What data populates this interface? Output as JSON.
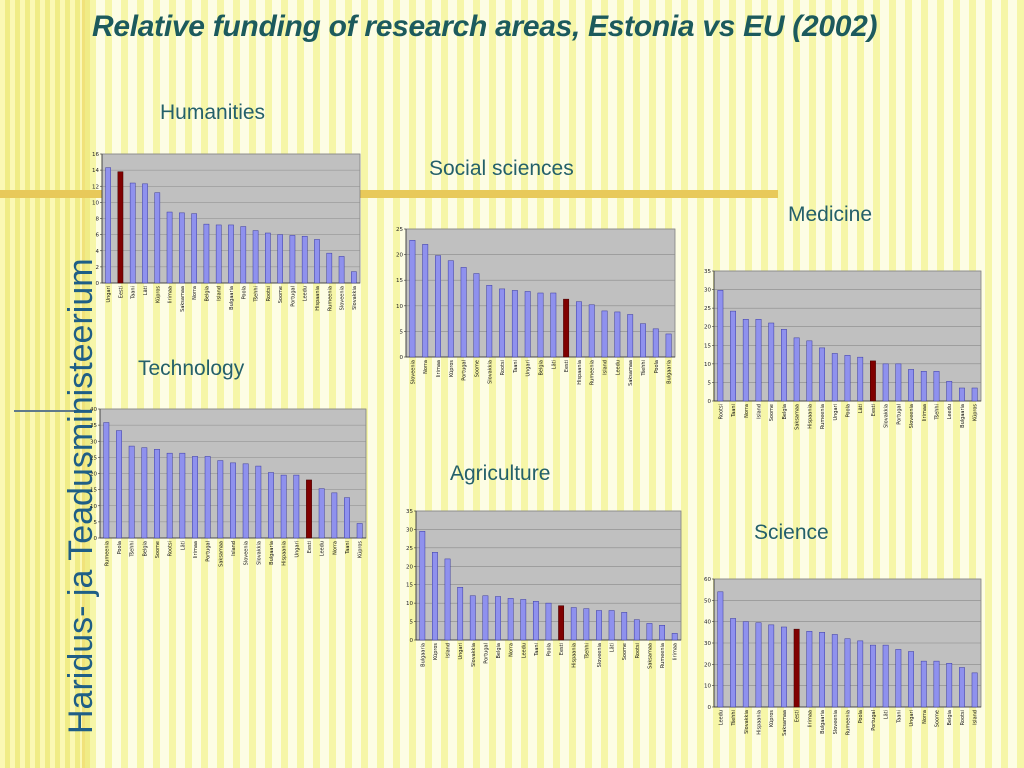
{
  "title": "Relative funding of research areas, Estonia vs EU (2002)",
  "brand": "Haridus- ja Teadusministeerium",
  "colors": {
    "bar": "#8f91ee",
    "highlight": "#800000",
    "plot_bg": "#c0c0c0"
  },
  "charts": {
    "humanities": {
      "label": "Humanities"
    },
    "social": {
      "label": "Social sciences"
    },
    "medicine": {
      "label": "Medicine"
    },
    "technology": {
      "label": "Technology"
    },
    "agriculture": {
      "label": "Agriculture"
    },
    "science": {
      "label": "Science"
    }
  },
  "chart_data": [
    {
      "id": "humanities",
      "type": "bar",
      "title": "Humanities",
      "highlight": "Eesti",
      "ylim": [
        0,
        16
      ],
      "yticks": [
        0,
        2,
        4,
        6,
        8,
        10,
        12,
        14,
        16
      ],
      "grid": true,
      "categories": [
        "Ungari",
        "Eesti",
        "Taani",
        "Läti",
        "Küpros",
        "Iirimaa",
        "Saksamaa",
        "Norra",
        "Belgia",
        "Island",
        "Bulgaaria",
        "Poola",
        "Tšehhi",
        "Rootsi",
        "Soome",
        "Portugal",
        "Leedu",
        "Hispaania",
        "Rumeenia",
        "Sloveenia",
        "Slovakkia"
      ],
      "values": [
        14.3,
        13.8,
        12.4,
        12.3,
        11.2,
        8.8,
        8.7,
        8.6,
        7.3,
        7.2,
        7.2,
        7.0,
        6.5,
        6.2,
        6.0,
        5.9,
        5.8,
        5.4,
        3.7,
        3.3,
        1.4
      ]
    },
    {
      "id": "social",
      "type": "bar",
      "title": "Social sciences",
      "highlight": "Eesti",
      "ylim": [
        0,
        25
      ],
      "yticks": [
        0,
        5,
        10,
        15,
        20,
        25
      ],
      "grid": true,
      "categories": [
        "Sloveenia",
        "Norra",
        "Iirimaa",
        "Küpros",
        "Portugal",
        "Soome",
        "Slovakkia",
        "Rootsi",
        "Taani",
        "Ungari",
        "Belgia",
        "Läti",
        "Eesti",
        "Hispaania",
        "Rumeenia",
        "Island",
        "Leedu",
        "Saksamaa",
        "Tšehhi",
        "Poola",
        "Bulgaaria"
      ],
      "values": [
        22.8,
        22.0,
        19.8,
        18.8,
        17.5,
        16.3,
        14.0,
        13.3,
        13.0,
        12.8,
        12.5,
        12.5,
        11.3,
        10.8,
        10.2,
        9.0,
        8.8,
        8.3,
        6.5,
        5.5,
        4.5
      ]
    },
    {
      "id": "medicine",
      "type": "bar",
      "title": "Medicine",
      "highlight": "Eesti",
      "ylim": [
        0,
        35
      ],
      "yticks": [
        0,
        5,
        10,
        15,
        20,
        25,
        30,
        35
      ],
      "grid": true,
      "categories": [
        "Rootsi",
        "Taani",
        "Norra",
        "Island",
        "Soome",
        "Belgia",
        "Saksamaa",
        "Hispaania",
        "Rumeenia",
        "Ungari",
        "Poola",
        "Läti",
        "Eesti",
        "Slovakkia",
        "Portugal",
        "Sloveenia",
        "Iirimaa",
        "Tšehhi",
        "Leedu",
        "Bulgaaria",
        "Küpros"
      ],
      "values": [
        29.8,
        24.2,
        22.0,
        22.0,
        21.0,
        19.3,
        17.0,
        16.2,
        14.3,
        12.8,
        12.3,
        11.8,
        10.8,
        10.0,
        10.0,
        8.5,
        8.0,
        8.0,
        5.3,
        3.5,
        3.5
      ]
    },
    {
      "id": "technology",
      "type": "bar",
      "title": "Technology",
      "highlight": "Eesti",
      "ylim": [
        0,
        40
      ],
      "yticks": [
        0,
        5,
        10,
        15,
        20,
        25,
        30,
        35,
        40
      ],
      "grid": true,
      "categories": [
        "Rumeenia",
        "Poola",
        "Tšehhi",
        "Belgia",
        "Soome",
        "Rootsi",
        "Läti",
        "Iirimaa",
        "Portugal",
        "Saksamaa",
        "Island",
        "Sloveenia",
        "Slovakkia",
        "Bulgaaria",
        "Hispaania",
        "Ungari",
        "Eesti",
        "Leedu",
        "Norra",
        "Taani",
        "Küpros"
      ],
      "values": [
        35.8,
        33.3,
        28.5,
        28.0,
        27.5,
        26.3,
        26.3,
        25.3,
        25.3,
        24.0,
        23.3,
        23.0,
        22.3,
        20.3,
        19.5,
        19.5,
        18.0,
        15.3,
        14.0,
        12.5,
        4.5
      ]
    },
    {
      "id": "agriculture",
      "type": "bar",
      "title": "Agriculture",
      "highlight": "Eesti",
      "ylim": [
        0,
        35
      ],
      "yticks": [
        0,
        5,
        10,
        15,
        20,
        25,
        30,
        35
      ],
      "grid": true,
      "categories": [
        "Bulgaaria",
        "Küpros",
        "Island",
        "Ungari",
        "Slovakkia",
        "Portugal",
        "Belgia",
        "Norra",
        "Leedu",
        "Taani",
        "Poola",
        "Eesti",
        "Hispaania",
        "Tšehhi",
        "Sloveenia",
        "Läti",
        "Soome",
        "Rootsi",
        "Saksamaa",
        "Rumeenia",
        "Iirimaa"
      ],
      "values": [
        29.5,
        23.8,
        22.0,
        14.3,
        12.0,
        12.0,
        11.8,
        11.3,
        11.0,
        10.5,
        10.0,
        9.3,
        8.8,
        8.5,
        8.0,
        8.0,
        7.5,
        5.5,
        4.5,
        4.0,
        1.8
      ]
    },
    {
      "id": "science",
      "type": "bar",
      "title": "Science",
      "highlight": "Eesti",
      "ylim": [
        0,
        60
      ],
      "yticks": [
        0,
        10,
        20,
        30,
        40,
        50,
        60
      ],
      "grid": true,
      "categories": [
        "Leedu",
        "Tšehhi",
        "Slovakkia",
        "Hispaania",
        "Küpros",
        "Saksamaa",
        "Eesti",
        "Iirimaa",
        "Bulgaaria",
        "Sloveenia",
        "Rumeenia",
        "Poola",
        "Portugal",
        "Läti",
        "Taani",
        "Ungari",
        "Norra",
        "Soome",
        "Belgia",
        "Rootsi",
        "Island"
      ],
      "values": [
        54.0,
        41.5,
        40.0,
        39.5,
        38.5,
        37.5,
        36.5,
        35.5,
        35.0,
        34.0,
        32.0,
        31.0,
        29.0,
        29.0,
        27.0,
        26.0,
        21.5,
        21.5,
        20.5,
        18.5,
        16.0
      ]
    }
  ]
}
